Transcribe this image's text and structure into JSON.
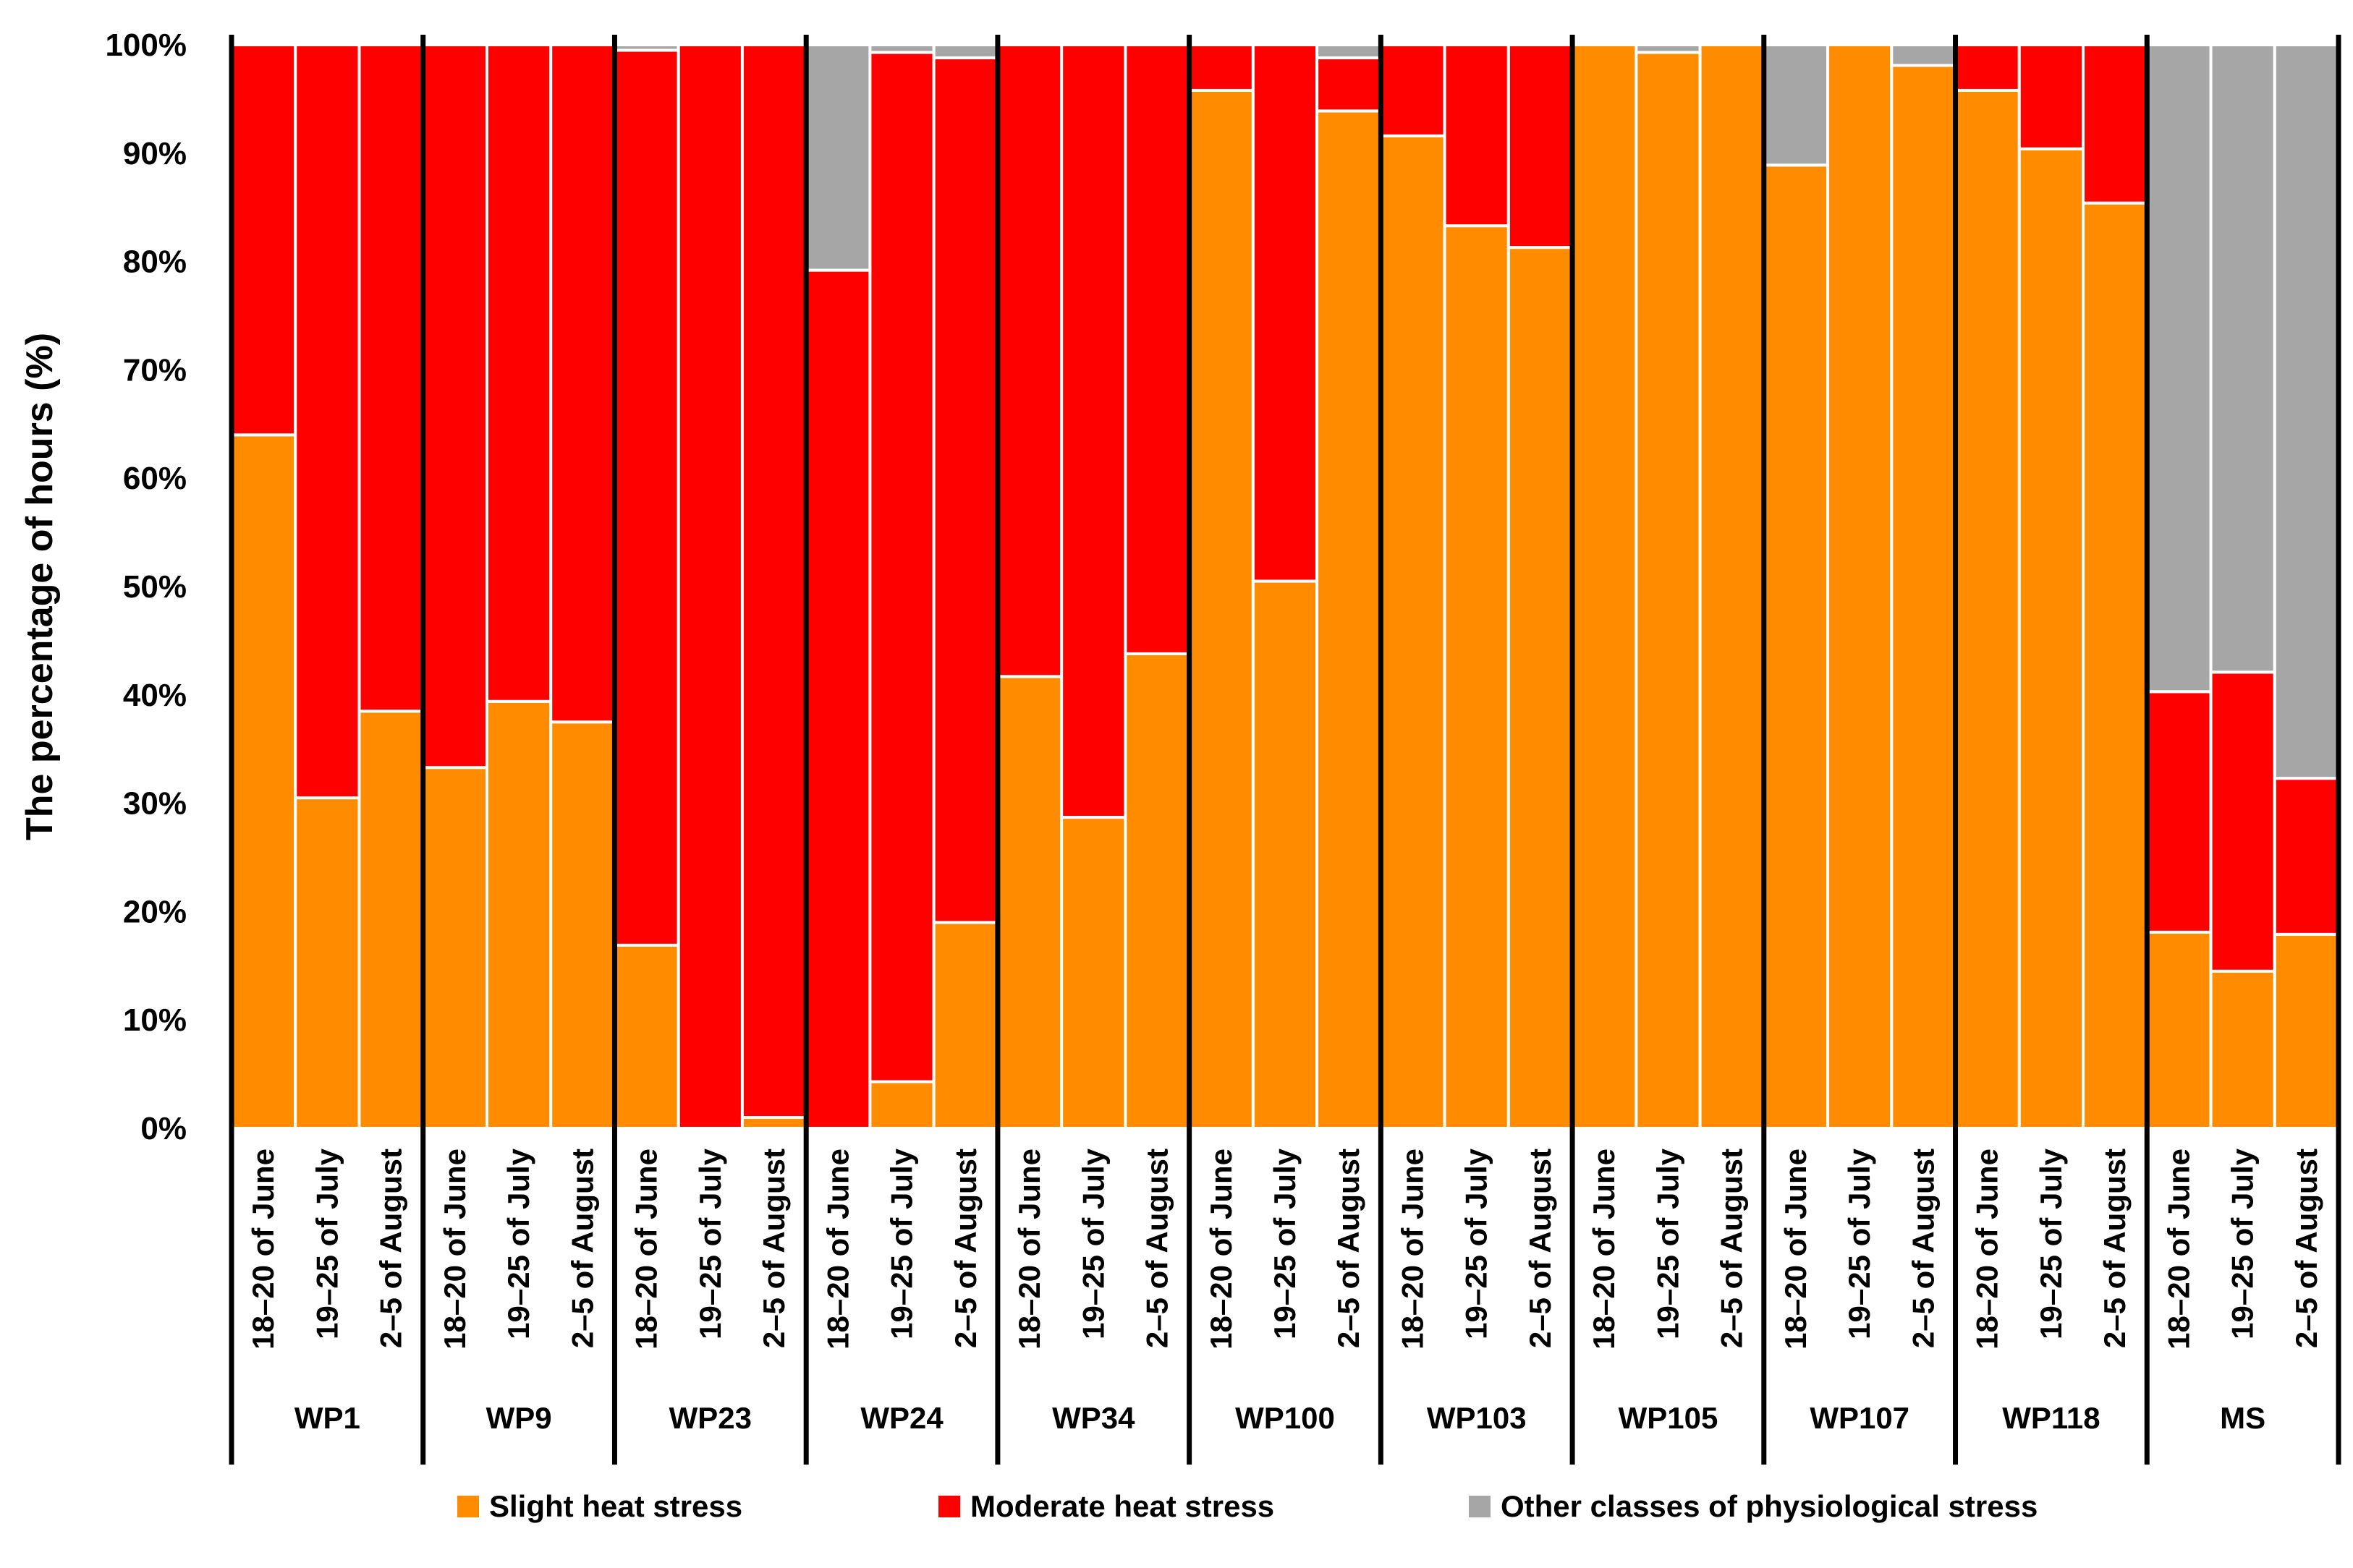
{
  "chart_data": {
    "type": "bar",
    "stacked": true,
    "ylabel": "The percentage of hours (%)",
    "ylim": [
      0,
      100
    ],
    "yticks": [
      "0%",
      "10%",
      "20%",
      "30%",
      "40%",
      "50%",
      "60%",
      "70%",
      "80%",
      "90%",
      "100%"
    ],
    "ytick_values": [
      0,
      10,
      20,
      30,
      40,
      50,
      60,
      70,
      80,
      90,
      100
    ],
    "periods": [
      "18–20 of June",
      "19–25 of July",
      "2–5 of August"
    ],
    "groups": [
      "WP1",
      "WP9",
      "WP23",
      "WP24",
      "WP34",
      "WP100",
      "WP103",
      "WP105",
      "WP107",
      "WP118",
      "MS"
    ],
    "series": [
      {
        "name": "Slight heat stress",
        "color": "#ff8c00",
        "values": [
          64,
          30.5,
          38.5,
          33.3,
          39.4,
          37.5,
          16.9,
          0,
          1,
          0,
          4.3,
          19,
          41.7,
          28.7,
          43.8,
          95.8,
          50.5,
          93.9,
          91.6,
          83.3,
          81.3,
          100,
          99.3,
          100,
          88.9,
          100,
          98.1,
          95.8,
          90.4,
          85.4,
          18.1,
          14.5,
          17.9
        ]
      },
      {
        "name": "Moderate heat stress",
        "color": "#ff0000",
        "values": [
          36,
          69.5,
          61.5,
          66.7,
          60.6,
          62.5,
          82.6,
          100,
          99,
          79.2,
          95,
          79.8,
          58.3,
          71.3,
          56.2,
          4.2,
          49.5,
          4.9,
          8.4,
          16.7,
          18.7,
          0,
          0,
          0,
          0,
          0,
          0,
          4.2,
          9.6,
          14.6,
          22.2,
          27.6,
          14.4
        ]
      },
      {
        "name": "Other classes of physiological stress",
        "color": "#a6a6a6",
        "values": [
          0,
          0,
          0,
          0,
          0,
          0,
          0.5,
          0,
          0,
          20.8,
          0.7,
          1.2,
          0,
          0,
          0,
          0,
          0,
          1.2,
          0,
          0,
          0,
          0,
          0.7,
          0,
          11.1,
          0,
          1.9,
          0,
          0,
          0,
          59.7,
          57.9,
          67.7
        ]
      }
    ],
    "legend_position": "bottom-center"
  }
}
